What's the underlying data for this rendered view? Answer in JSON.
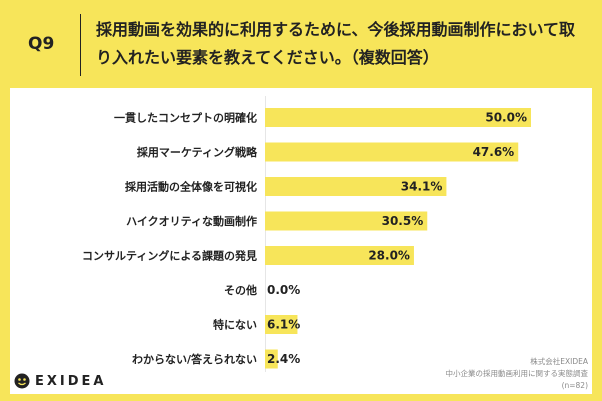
{
  "question": {
    "label": "Q9",
    "text": "採用動画を効果的に利用するために、今後採用動画制作において取り入れたい要素を教えてください。（複数回答）"
  },
  "chart_data": {
    "type": "bar",
    "orientation": "horizontal",
    "categories": [
      "一貫したコンセプトの明確化",
      "採用マーケティング戦略",
      "採用活動の全体像を可視化",
      "ハイクオリティな動画制作",
      "コンサルティングによる課題の発見",
      "その他",
      "特にない",
      "わからない/答えられない"
    ],
    "values": [
      50.0,
      47.6,
      34.1,
      30.5,
      28.0,
      0.0,
      6.1,
      2.4
    ],
    "value_labels": [
      "50.0%",
      "47.6%",
      "34.1%",
      "30.5%",
      "28.0%",
      "0.0%",
      "6.1%",
      "2.4%"
    ],
    "unit": "%",
    "xlim": [
      0,
      50
    ],
    "bar_color": "#f7e55a"
  },
  "brand": {
    "name": "EXIDEA"
  },
  "source": {
    "company": "株式会社EXIDEA",
    "survey": "中小企業の採用動画利用に関する実態調査",
    "sample": "(n=82)"
  },
  "colors": {
    "background": "#f7e55a",
    "panel": "#ffffff",
    "text": "#222222"
  }
}
